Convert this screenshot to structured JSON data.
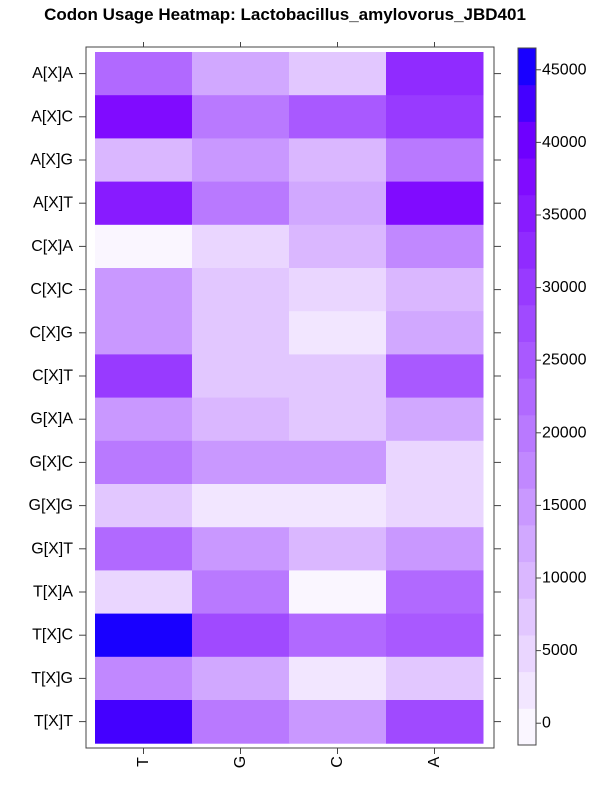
{
  "chart_data": {
    "type": "heatmap",
    "title": "Codon Usage Heatmap: Lactobacillus_amylovorus_JBD401",
    "x_categories": [
      "T",
      "G",
      "C",
      "A"
    ],
    "y_categories": [
      "A[X]A",
      "A[X]C",
      "A[X]G",
      "A[X]T",
      "C[X]A",
      "C[X]C",
      "C[X]G",
      "C[X]T",
      "G[X]A",
      "G[X]C",
      "G[X]G",
      "G[X]T",
      "T[X]A",
      "T[X]C",
      "T[X]G",
      "T[X]T"
    ],
    "values": [
      [
        22000,
        13000,
        6500,
        33000
      ],
      [
        37000,
        21000,
        24000,
        29000
      ],
      [
        9000,
        14000,
        10000,
        21000
      ],
      [
        36000,
        19000,
        12000,
        38000
      ],
      [
        0,
        4000,
        11000,
        18000
      ],
      [
        15000,
        7000,
        6000,
        9000
      ],
      [
        16000,
        6500,
        3000,
        13000
      ],
      [
        31000,
        7000,
        6500,
        25000
      ],
      [
        16000,
        10000,
        7000,
        13000
      ],
      [
        19000,
        14000,
        14000,
        6000
      ],
      [
        7000,
        3000,
        3000,
        6000
      ],
      [
        22000,
        14000,
        10000,
        16000
      ],
      [
        4000,
        19000,
        0,
        22000
      ],
      [
        46000,
        28000,
        23000,
        25000
      ],
      [
        18000,
        12000,
        3000,
        7000
      ],
      [
        42000,
        19000,
        16000,
        27000
      ]
    ],
    "colorbar": {
      "ticks": [
        0,
        5000,
        10000,
        15000,
        20000,
        25000,
        30000,
        35000,
        40000,
        45000
      ],
      "tick_labels": [
        "0",
        "5000",
        "10000",
        "15000",
        "20000",
        "25000",
        "30000",
        "35000",
        "40000",
        "45000"
      ],
      "range": [
        -1500,
        46500
      ],
      "bin_size": 2500,
      "color_low": "#ffffff",
      "color_mid": "#7a00ff",
      "color_high": "#0000ff"
    }
  }
}
